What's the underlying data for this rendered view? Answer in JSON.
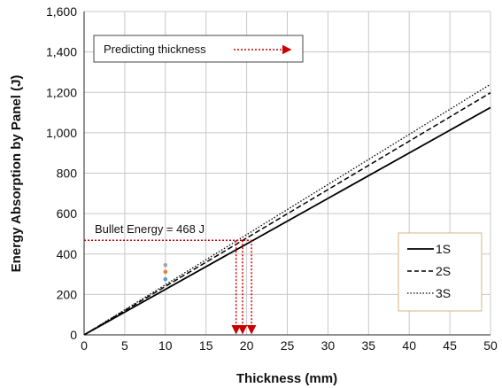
{
  "chart_data": {
    "type": "line",
    "title": "",
    "xlabel": "Thickness (mm)",
    "ylabel": "Energy Absorption by Panel (J)",
    "xlim": [
      0,
      50
    ],
    "ylim": [
      0,
      1600
    ],
    "x_ticks": [
      0,
      5,
      10,
      15,
      20,
      25,
      30,
      35,
      40,
      45,
      50
    ],
    "y_ticks": [
      0,
      200,
      400,
      600,
      800,
      1000,
      1200,
      1400,
      1600
    ],
    "x_tick_labels": [
      "0",
      "5",
      "10",
      "15",
      "20",
      "25",
      "30",
      "35",
      "40",
      "45",
      "50"
    ],
    "y_tick_labels": [
      "0",
      "200",
      "400",
      "600",
      "800",
      "1,000",
      "1,200",
      "1,400",
      "1,600"
    ],
    "grid": true,
    "legend_position": "right",
    "series": [
      {
        "name": "1S",
        "dash": "solid",
        "x": [
          0,
          50
        ],
        "y": [
          0,
          1125
        ]
      },
      {
        "name": "2S",
        "dash": "dashed",
        "x": [
          0,
          50
        ],
        "y": [
          0,
          1198
        ]
      },
      {
        "name": "3S",
        "dash": "dotted",
        "x": [
          0,
          50
        ],
        "y": [
          0,
          1240
        ]
      }
    ],
    "scatter_points": [
      {
        "x": 10,
        "y": 345,
        "color": "#a5a5a5"
      },
      {
        "x": 10,
        "y": 312,
        "color": "#ed7d31"
      },
      {
        "x": 10,
        "y": 275,
        "color": "#5b9bd5"
      }
    ],
    "bullet_energy": {
      "label": "Bullet Energy = 468 J",
      "y": 468,
      "x_start": 0,
      "intersections_x": [
        18.7,
        19.5,
        20.6
      ],
      "color": "#cc0000"
    },
    "annotation": {
      "label": "Predicting thickness"
    }
  }
}
